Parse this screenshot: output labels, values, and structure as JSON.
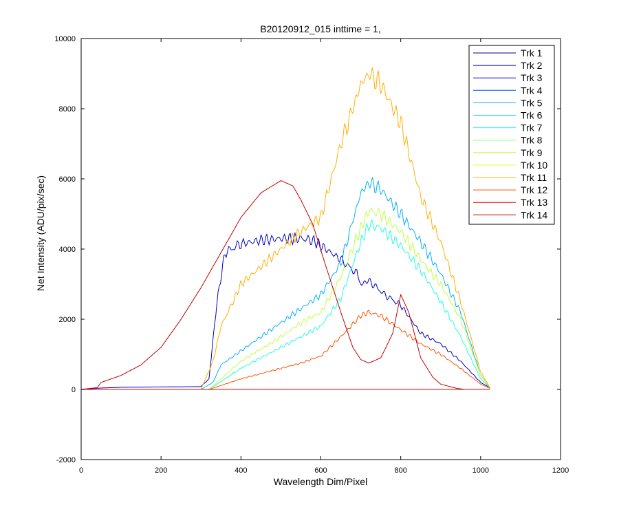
{
  "figure_background": "#ffffff",
  "chart_data": {
    "type": "line",
    "title": "B20120912_015 inttime = 1,",
    "xlabel": "Wavelength Dim/Pixel",
    "ylabel": "Net Intensity (ADU/pix/sec)",
    "xlim": [
      0,
      1200
    ],
    "ylim": [
      -2000,
      10000
    ],
    "xticks": [
      0,
      200,
      400,
      600,
      800,
      1000,
      1200
    ],
    "yticks": [
      -2000,
      0,
      2000,
      4000,
      6000,
      8000,
      10000
    ],
    "grid": false,
    "legend_position": "top-right",
    "series": [
      {
        "name": "Trk 1",
        "color": "#00008f",
        "x": [
          0,
          1023
        ],
        "y": [
          0,
          0
        ]
      },
      {
        "name": "Trk 2",
        "color": "#0000bf",
        "x": [
          0,
          50,
          100,
          200,
          300,
          320,
          340,
          360,
          400,
          450,
          500,
          550,
          580,
          600,
          650,
          690,
          700,
          720,
          760,
          800,
          850,
          900,
          950,
          1000,
          1023
        ],
        "y": [
          0,
          40,
          60,
          70,
          80,
          300,
          2500,
          3900,
          4150,
          4250,
          4300,
          4300,
          4250,
          4100,
          3700,
          3300,
          3000,
          3100,
          2700,
          2400,
          1600,
          1300,
          800,
          200,
          50
        ]
      },
      {
        "name": "Trk 3",
        "color": "#0000ef",
        "x": [
          0,
          1023
        ],
        "y": [
          0,
          0
        ]
      },
      {
        "name": "Trk 4",
        "color": "#0050ff",
        "x": [
          0,
          1023
        ],
        "y": [
          0,
          0
        ]
      },
      {
        "name": "Trk 5",
        "color": "#00afff",
        "x": [
          0,
          300,
          330,
          350,
          400,
          450,
          500,
          550,
          600,
          650,
          680,
          700,
          720,
          750,
          800,
          850,
          900,
          950,
          1000,
          1023
        ],
        "y": [
          0,
          0,
          200,
          700,
          1100,
          1500,
          1900,
          2300,
          2700,
          3600,
          4800,
          5600,
          5900,
          5700,
          5000,
          4200,
          3300,
          2200,
          400,
          50
        ]
      },
      {
        "name": "Trk 6",
        "color": "#00dfff",
        "x": [
          0,
          1023
        ],
        "y": [
          0,
          0
        ]
      },
      {
        "name": "Trk 7",
        "color": "#20ffdf",
        "x": [
          0,
          320,
          360,
          400,
          450,
          500,
          550,
          600,
          650,
          700,
          720,
          750,
          800,
          850,
          900,
          950,
          1000,
          1023
        ],
        "y": [
          0,
          0,
          300,
          600,
          900,
          1200,
          1500,
          1800,
          2600,
          4200,
          4700,
          4600,
          4100,
          3400,
          2500,
          1500,
          300,
          50
        ]
      },
      {
        "name": "Trk 8",
        "color": "#80ff7f",
        "x": [
          0,
          1023
        ],
        "y": [
          0,
          0
        ]
      },
      {
        "name": "Trk 9",
        "color": "#bfff3f",
        "x": [
          0,
          320,
          360,
          400,
          450,
          500,
          550,
          600,
          650,
          700,
          720,
          750,
          800,
          850,
          900,
          950,
          1000,
          1023
        ],
        "y": [
          0,
          0,
          400,
          800,
          1150,
          1500,
          1900,
          2200,
          3200,
          4600,
          5100,
          5000,
          4500,
          3700,
          3000,
          2000,
          400,
          50
        ]
      },
      {
        "name": "Trk 10",
        "color": "#dfff1f",
        "x": [
          0,
          1023
        ],
        "y": [
          0,
          0
        ]
      },
      {
        "name": "Trk 11",
        "color": "#ffaf00",
        "x": [
          0,
          300,
          330,
          350,
          380,
          400,
          450,
          500,
          550,
          600,
          650,
          680,
          700,
          720,
          750,
          800,
          850,
          900,
          950,
          1000,
          1023
        ],
        "y": [
          0,
          0,
          800,
          1800,
          2500,
          3000,
          3500,
          4000,
          4500,
          4900,
          7000,
          8000,
          8700,
          9000,
          8700,
          7600,
          5500,
          4200,
          2500,
          500,
          50
        ]
      },
      {
        "name": "Trk 12",
        "color": "#ff5000",
        "x": [
          0,
          320,
          400,
          450,
          500,
          550,
          600,
          650,
          700,
          720,
          750,
          800,
          850,
          900,
          950,
          1000,
          1023
        ],
        "y": [
          0,
          0,
          300,
          450,
          600,
          750,
          950,
          1500,
          2100,
          2200,
          2100,
          1700,
          1300,
          1000,
          600,
          150,
          30
        ]
      },
      {
        "name": "Trk 13",
        "color": "#ef0000",
        "x": [
          0,
          1023
        ],
        "y": [
          0,
          0
        ]
      },
      {
        "name": "Trk 14",
        "color": "#bf0000",
        "x": [
          0,
          40,
          50,
          100,
          150,
          200,
          250,
          300,
          350,
          400,
          450,
          500,
          530,
          550,
          580,
          610,
          650,
          680,
          700,
          720,
          750,
          780,
          800,
          820,
          850,
          880,
          900,
          940,
          960
        ],
        "y": [
          0,
          50,
          200,
          400,
          700,
          1200,
          2000,
          2900,
          3900,
          4900,
          5600,
          5950,
          5800,
          5400,
          4700,
          3600,
          2200,
          1200,
          850,
          750,
          900,
          1600,
          2700,
          2200,
          900,
          350,
          150,
          30,
          0
        ]
      }
    ]
  }
}
